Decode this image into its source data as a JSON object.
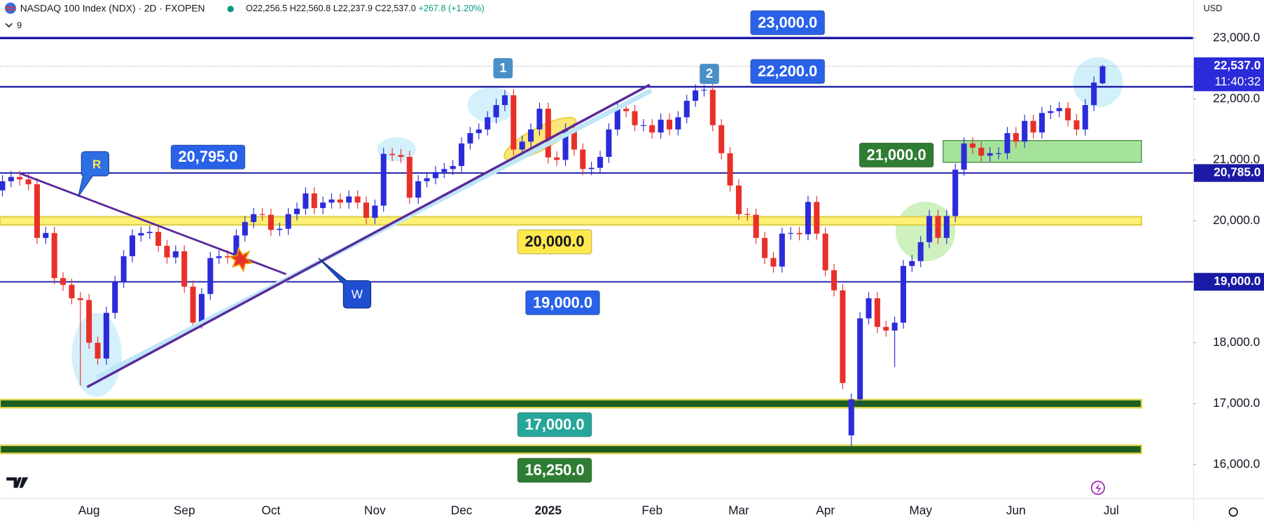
{
  "chart_data": {
    "type": "candlestick",
    "title": "NASDAQ 100 Index (NDX) · 2D · FXOPEN",
    "ohlc_header": [
      "O22,256.5",
      "H22,560.8",
      "L22,237.9",
      "C22,537.0",
      "+267.8 (+1.20%)"
    ],
    "indicators": "9",
    "currency": "USD",
    "countdown": "11:40:32",
    "grid": false,
    "up_color": "#2b2bd9",
    "down_color": "#e8302a",
    "ylim": [
      15447,
      23622
    ],
    "yticks": [
      {
        "value": 16000,
        "label": "16,000.0"
      },
      {
        "value": 17000,
        "label": "17,000.0"
      },
      {
        "value": 18000,
        "label": "18,000.0"
      },
      {
        "value": 19000,
        "label": "19,000.0"
      },
      {
        "value": 20000,
        "label": "20,000.0"
      },
      {
        "value": 21000,
        "label": "21,000.0"
      },
      {
        "value": 22000,
        "label": "22,000.0"
      },
      {
        "value": 23000,
        "label": "23,000.0"
      }
    ],
    "categories": [
      null,
      null,
      null,
      null,
      null,
      null,
      null,
      null,
      null,
      null,
      "Aug",
      null,
      null,
      null,
      null,
      null,
      null,
      null,
      null,
      null,
      null,
      "Sep",
      null,
      null,
      null,
      null,
      null,
      null,
      null,
      null,
      null,
      "Oct",
      null,
      null,
      null,
      null,
      null,
      null,
      null,
      null,
      null,
      null,
      null,
      "Nov",
      null,
      null,
      null,
      null,
      null,
      null,
      null,
      null,
      null,
      "Dec",
      null,
      null,
      null,
      null,
      null,
      null,
      null,
      null,
      null,
      "2025",
      null,
      null,
      null,
      null,
      null,
      null,
      null,
      null,
      null,
      null,
      null,
      "Feb",
      null,
      null,
      null,
      null,
      null,
      null,
      null,
      null,
      null,
      "Mar",
      null,
      null,
      null,
      null,
      null,
      null,
      null,
      null,
      null,
      "Apr",
      null,
      null,
      null,
      null,
      null,
      null,
      null,
      null,
      null,
      null,
      "May",
      null,
      null,
      null,
      null,
      null,
      null,
      null,
      null,
      null,
      null,
      "Jun",
      null,
      null,
      null,
      null,
      null,
      null,
      null,
      null,
      null,
      null,
      "Jul",
      null
    ],
    "open": [
      20500,
      20650,
      20720,
      20680,
      20600,
      19720,
      19800,
      19060,
      18950,
      18730,
      18700,
      18000,
      17740,
      18490,
      19000,
      19420,
      19760,
      19800,
      19820,
      19590,
      19400,
      19500,
      18920,
      18330,
      18800,
      19390,
      19420,
      19400,
      19760,
      19980,
      20110,
      20100,
      19850,
      19870,
      20110,
      20200,
      20450,
      20210,
      20300,
      20350,
      20300,
      20400,
      20300,
      20050,
      20250,
      21100,
      21080,
      21050,
      20380,
      20650,
      20700,
      20800,
      20850,
      20900,
      21270,
      21440,
      21500,
      21700,
      21900,
      22060,
      21170,
      21300,
      21500,
      21840,
      21040,
      21000,
      21500,
      21170,
      20850,
      20870,
      21050,
      21500,
      21840,
      21800,
      21570,
      21570,
      21450,
      21660,
      21500,
      21700,
      21970,
      22140,
      22150,
      21570,
      21110,
      20580,
      20110,
      20100,
      19720,
      19390,
      19250,
      19790,
      19800,
      19780,
      20310,
      19790,
      19190,
      18860,
      16480,
      17070,
      18400,
      18730,
      18260,
      18200,
      18330,
      19260,
      19340,
      19650,
      20080,
      19720,
      20080,
      20840,
      21270,
      21200,
      21070,
      21110,
      21110,
      21440,
      21300,
      21640,
      21450,
      21770,
      21800,
      21850,
      21650,
      21500,
      21900,
      22256.5,
      null,
      null
    ],
    "high": [
      20750,
      20820,
      20820,
      20780,
      20700,
      19900,
      19900,
      19160,
      19050,
      18830,
      18800,
      18100,
      18590,
      19100,
      19520,
      19860,
      19900,
      19920,
      19920,
      19690,
      19600,
      19600,
      19020,
      18900,
      19490,
      19520,
      19520,
      19860,
      20080,
      20210,
      20210,
      20200,
      19970,
      20210,
      20300,
      20550,
      20550,
      20400,
      20450,
      20450,
      20500,
      20500,
      20400,
      20350,
      21200,
      21200,
      21180,
      21150,
      20750,
      20800,
      20900,
      20950,
      21000,
      21370,
      21540,
      21600,
      21800,
      22000,
      22150,
      22160,
      21400,
      21600,
      21940,
      21940,
      21140,
      21600,
      21600,
      21270,
      20970,
      21150,
      21600,
      21940,
      21940,
      21900,
      21670,
      21670,
      21760,
      21760,
      21800,
      22070,
      22240,
      22230,
      22250,
      21670,
      21210,
      20680,
      20210,
      20200,
      19820,
      19490,
      19890,
      19900,
      19900,
      20410,
      20410,
      19890,
      19290,
      18960,
      17170,
      18500,
      18830,
      18830,
      18360,
      18430,
      19360,
      19440,
      19750,
      20180,
      20180,
      20180,
      20940,
      21370,
      21370,
      21300,
      21210,
      21210,
      21540,
      21540,
      21740,
      21740,
      21870,
      21900,
      21950,
      21950,
      21750,
      22000,
      22370,
      22560.8,
      null,
      null
    ],
    "low": [
      20400,
      20550,
      20580,
      20500,
      19620,
      19620,
      18960,
      18850,
      18630,
      17300,
      17900,
      17640,
      17640,
      18390,
      18900,
      19320,
      19660,
      19700,
      19490,
      19300,
      19300,
      18820,
      18230,
      18230,
      18700,
      19290,
      19300,
      19300,
      19660,
      19880,
      20000,
      19750,
      19750,
      19770,
      20010,
      20100,
      20110,
      20110,
      20200,
      20200,
      20200,
      20200,
      19950,
      19950,
      20150,
      20980,
      20950,
      20280,
      20280,
      20550,
      20600,
      20700,
      20750,
      20800,
      21170,
      21340,
      21400,
      21600,
      21800,
      21070,
      21070,
      21200,
      21400,
      20940,
      20900,
      20900,
      21070,
      20750,
      20750,
      20770,
      20950,
      21400,
      21700,
      21470,
      21470,
      21350,
      21350,
      21400,
      21400,
      21600,
      21870,
      22040,
      21470,
      21010,
      20480,
      20010,
      20000,
      19620,
      19290,
      19150,
      19150,
      19690,
      19680,
      19680,
      19690,
      19090,
      18760,
      17240,
      16300,
      16970,
      18300,
      18160,
      18100,
      17600,
      18230,
      19160,
      19240,
      19550,
      19620,
      19620,
      19980,
      20740,
      21100,
      20970,
      20970,
      21010,
      21010,
      21200,
      21200,
      21350,
      21350,
      21670,
      21700,
      21550,
      21400,
      21400,
      21800,
      22237.9,
      null,
      null
    ],
    "close": [
      20650,
      20720,
      20680,
      20600,
      19720,
      19800,
      19060,
      18950,
      18730,
      18700,
      18000,
      17740,
      18490,
      19000,
      19420,
      19760,
      19800,
      19820,
      19590,
      19400,
      19500,
      18920,
      18330,
      18800,
      19390,
      19420,
      19400,
      19760,
      19980,
      20110,
      20100,
      19850,
      19870,
      20110,
      20200,
      20450,
      20210,
      20300,
      20350,
      20300,
      20400,
      20300,
      20050,
      20250,
      21100,
      21080,
      21050,
      20380,
      20650,
      20700,
      20800,
      20850,
      20900,
      21270,
      21440,
      21500,
      21700,
      21900,
      22060,
      21170,
      21300,
      21500,
      21840,
      21040,
      21000,
      21500,
      21170,
      20850,
      20870,
      21050,
      21500,
      21840,
      21800,
      21570,
      21570,
      21450,
      21660,
      21500,
      21700,
      21970,
      22140,
      22150,
      21570,
      21110,
      20580,
      20110,
      20100,
      19720,
      19390,
      19250,
      19790,
      19800,
      19780,
      20310,
      19790,
      19190,
      18860,
      17340,
      17070,
      18400,
      18730,
      18260,
      18200,
      18330,
      19260,
      19340,
      19650,
      20080,
      19720,
      20080,
      20840,
      21270,
      21200,
      21070,
      21110,
      21110,
      21440,
      21300,
      21640,
      21450,
      21770,
      21800,
      21850,
      21650,
      21500,
      21900,
      22270,
      22537,
      null,
      null
    ],
    "levels": [
      {
        "value": 23000,
        "label": "23,000.0",
        "style": "line",
        "color": "#2962e8",
        "label_pos": "above"
      },
      {
        "value": 22200,
        "label": "22,200.0",
        "style": "line",
        "color": "#2962e8",
        "label_pos": "above"
      },
      {
        "value": 20795,
        "label": "20,795.0",
        "style": "label",
        "color": "#2962e8",
        "label_pos": "above"
      },
      {
        "value": 21000,
        "label": "21,000.0",
        "style": "zone",
        "color": "#2e7d32",
        "label_pos": "left"
      },
      {
        "value": 20000,
        "label": "20,000.0",
        "style": "band",
        "color": "#ffe84d",
        "label_pos": "below"
      },
      {
        "value": 19000,
        "label": "19,000.0",
        "style": "label",
        "color": "#2962e8",
        "label_pos": "below"
      },
      {
        "value": 17000,
        "label": "17,000.0",
        "style": "band",
        "color": "#26a69a",
        "label_pos": "below"
      },
      {
        "value": 16250,
        "label": "16,250.0",
        "style": "band",
        "color": "#2e7d32",
        "label_pos": "below"
      }
    ],
    "price_tags": [
      {
        "value": 22537,
        "label": "22,537.0",
        "line": "dotted"
      },
      {
        "value": 20785,
        "label": "20,785.0",
        "line": "solid"
      },
      {
        "value": 19000,
        "label": "19,000.0",
        "line": "solid"
      }
    ],
    "annotations": {
      "waves": [
        "1",
        "2"
      ],
      "markers": [
        "R",
        "W"
      ]
    }
  }
}
